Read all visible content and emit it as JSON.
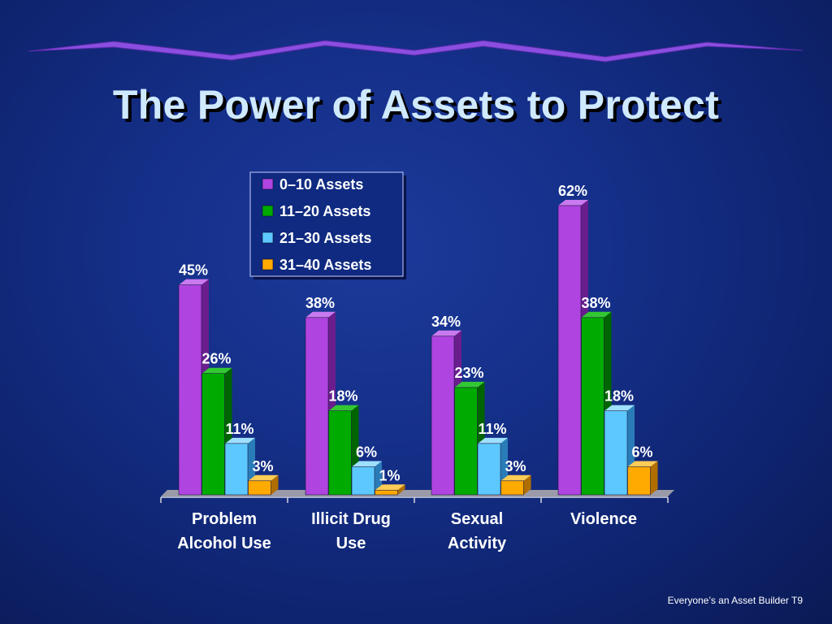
{
  "slide": {
    "title": "The Power of Assets to Protect",
    "footer": "Everyone’s an Asset Builder  T9"
  },
  "colors": {
    "series": [
      "#b044e0",
      "#00aa00",
      "#5cc8ff",
      "#ffaa00"
    ],
    "series_dark": [
      "#6a1e8e",
      "#006400",
      "#2a7cb8",
      "#b06e00"
    ],
    "series_top": [
      "#c97af0",
      "#33c833",
      "#9fe0ff",
      "#ffcc55"
    ],
    "banner": "#7b3fd6"
  },
  "chart_data": {
    "type": "bar",
    "categories": [
      [
        "Problem",
        "Alcohol Use"
      ],
      [
        "Illicit Drug",
        "Use"
      ],
      [
        "Sexual",
        "Activity"
      ],
      [
        "Violence"
      ]
    ],
    "series": [
      {
        "name": "0–10 Assets",
        "values": [
          45,
          38,
          34,
          62
        ]
      },
      {
        "name": "11–20 Assets",
        "values": [
          26,
          18,
          23,
          38
        ]
      },
      {
        "name": "21–30 Assets",
        "values": [
          11,
          6,
          11,
          18
        ]
      },
      {
        "name": "31–40 Assets",
        "values": [
          3,
          1,
          3,
          6
        ]
      }
    ],
    "value_suffix": "%",
    "ylim": [
      0,
      62
    ],
    "legend_position": "top-center",
    "grid": false
  }
}
